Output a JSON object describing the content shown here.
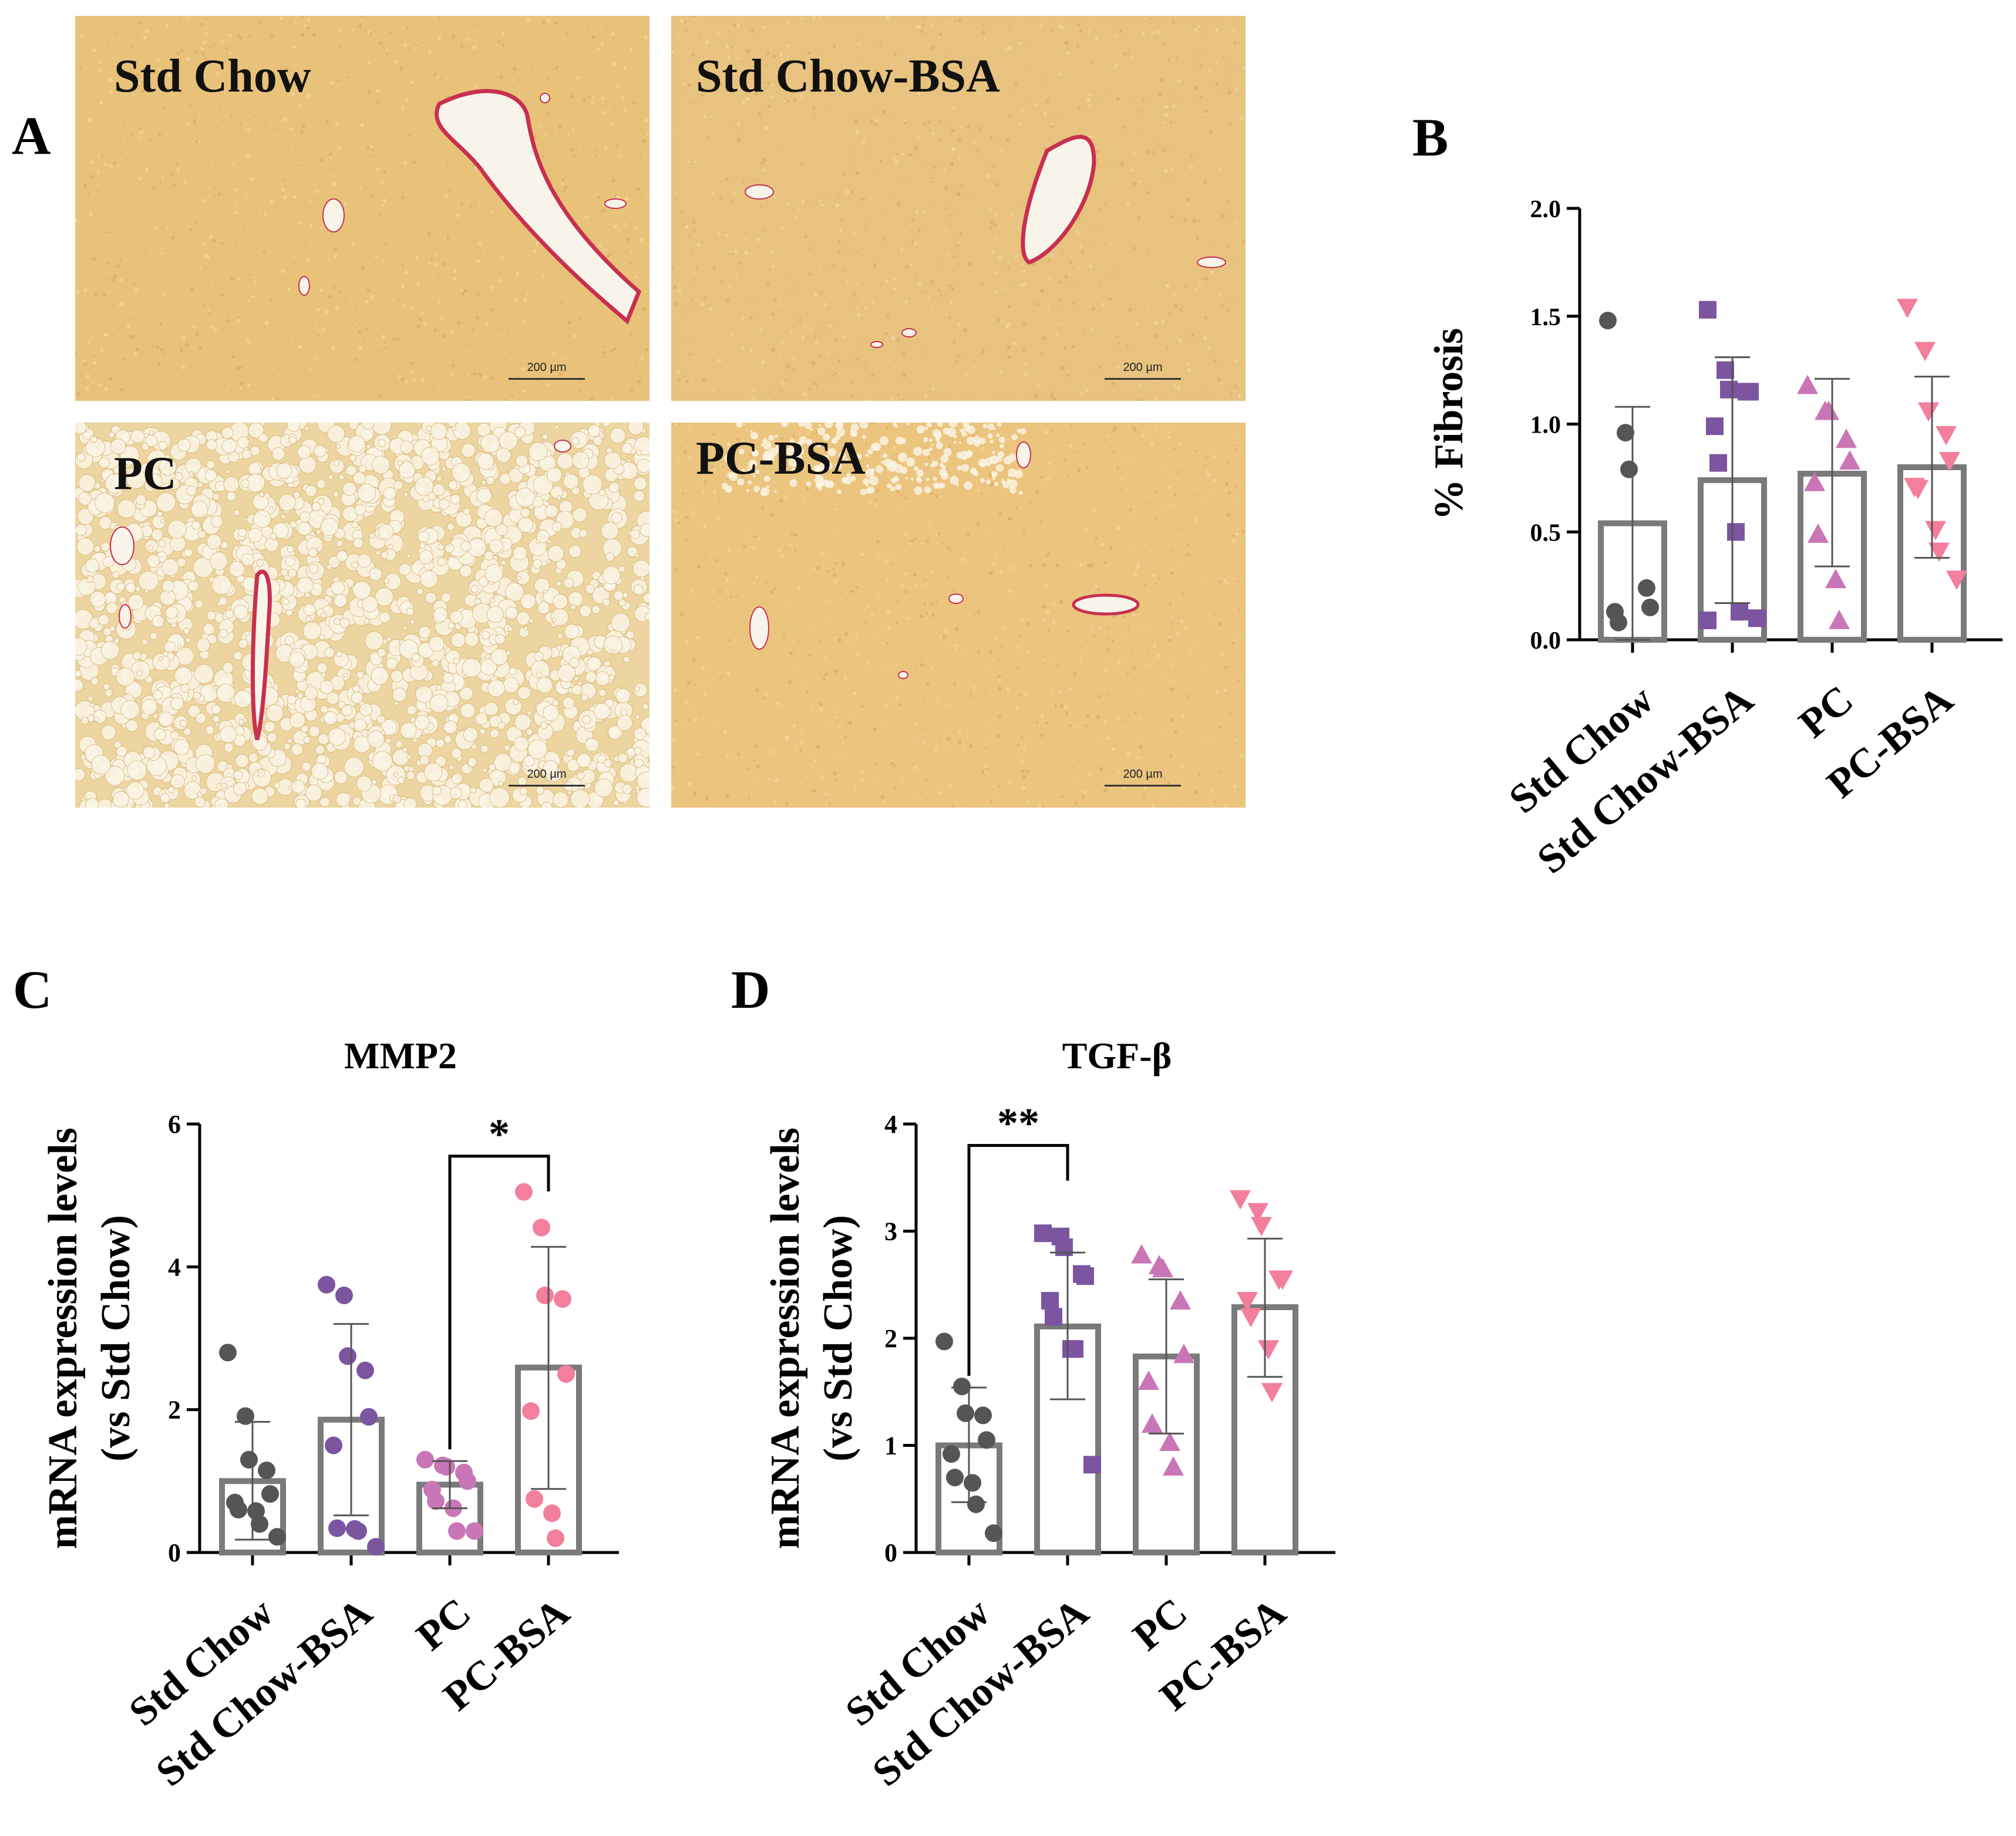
{
  "figure": {
    "panel_letters": {
      "a": "A",
      "b": "B",
      "c": "C",
      "d": "D"
    }
  },
  "micrographs": [
    {
      "label": "Std Chow",
      "scale": "200 µm",
      "tissue": "#e9c27a",
      "vessel_color": "#c7304f"
    },
    {
      "label": "Std Chow-BSA",
      "scale": "200 µm",
      "tissue": "#e8c37f",
      "vessel_color": "#c7304f"
    },
    {
      "label": "PC",
      "scale": "200 µm",
      "tissue": "#ecd5a0",
      "vessel_color": "#c7304f"
    },
    {
      "label": "PC-BSA",
      "scale": "200 µm",
      "tissue": "#ebc47e",
      "vessel_color": "#c7304f"
    }
  ],
  "colors": {
    "std_chow": "#555555",
    "std_chow_bsa": "#7b55a0",
    "pc": "#c976b6",
    "pc_bsa": "#f27f9b",
    "bar_outline": "#7a7a7a",
    "errorbar": "#555555"
  },
  "chart_data": [
    {
      "id": "B",
      "type": "bar",
      "title": "",
      "ylabel": "% Fibrosis",
      "xlabel": "",
      "categories": [
        "Std Chow",
        "Std Chow-BSA",
        "PC",
        "PC-BSA"
      ],
      "ylim": [
        0,
        2.0
      ],
      "yticks": [
        "0.0",
        "0.5",
        "1.0",
        "1.5",
        "2.0"
      ],
      "ytick_values": [
        0,
        0.5,
        1.0,
        1.5,
        2.0
      ],
      "means": [
        0.54,
        0.74,
        0.77,
        0.8
      ],
      "sd_upper": [
        1.08,
        1.31,
        1.21,
        1.22
      ],
      "sd_lower": [
        0.0,
        0.17,
        0.34,
        0.38
      ],
      "markers": [
        "circle",
        "square",
        "triangle-up",
        "triangle-down"
      ],
      "points": [
        [
          1.48,
          0.96,
          0.79,
          0.24,
          0.15,
          0.13,
          0.08
        ],
        [
          1.53,
          1.25,
          1.16,
          1.15,
          1.15,
          0.99,
          0.82,
          0.5,
          0.13,
          0.1,
          0.09
        ],
        [
          1.18,
          1.06,
          1.06,
          0.93,
          0.83,
          0.73,
          0.49,
          0.28,
          0.09
        ],
        [
          1.54,
          1.34,
          1.06,
          0.95,
          0.83,
          0.71,
          0.7,
          0.51,
          0.41,
          0.28
        ]
      ],
      "significance": []
    },
    {
      "id": "C",
      "type": "bar",
      "title": "MMP2",
      "ylabel": "mRNA expression levels",
      "ylabel2": "(vs Std Chow)",
      "xlabel": "",
      "categories": [
        "Std Chow",
        "Std Chow-BSA",
        "PC",
        "PC-BSA"
      ],
      "ylim": [
        0,
        6
      ],
      "yticks": [
        "0",
        "2",
        "4",
        "6"
      ],
      "ytick_values": [
        0,
        2,
        4,
        6
      ],
      "means": [
        1.0,
        1.86,
        0.95,
        2.59
      ],
      "sd_upper": [
        1.83,
        3.2,
        1.28,
        4.28
      ],
      "sd_lower": [
        0.18,
        0.52,
        0.62,
        0.89
      ],
      "markers": [
        "circle",
        "circle",
        "circle",
        "circle"
      ],
      "points": [
        [
          2.8,
          1.91,
          1.3,
          1.15,
          0.82,
          0.7,
          0.6,
          0.58,
          0.4,
          0.22
        ],
        [
          3.75,
          3.6,
          2.75,
          2.55,
          1.9,
          1.5,
          0.34,
          0.33,
          0.3,
          0.08
        ],
        [
          1.3,
          1.22,
          1.2,
          1.12,
          1.0,
          0.88,
          0.72,
          0.62,
          0.3,
          0.3
        ],
        [
          5.05,
          4.55,
          3.6,
          3.55,
          2.5,
          1.98,
          0.75,
          0.55,
          0.2
        ]
      ],
      "significance": [
        {
          "from": 2,
          "to": 3,
          "label": "*",
          "y": 5.55
        }
      ]
    },
    {
      "id": "D",
      "type": "bar",
      "title": "TGF-β",
      "ylabel": "mRNA expression levels",
      "ylabel2": "(vs Std Chow)",
      "xlabel": "",
      "categories": [
        "Std Chow",
        "Std Chow-BSA",
        "PC",
        "PC-BSA"
      ],
      "ylim": [
        0,
        4
      ],
      "yticks": [
        "0",
        "1",
        "2",
        "3",
        "4"
      ],
      "ytick_values": [
        0,
        1,
        2,
        3,
        4
      ],
      "means": [
        1.0,
        2.11,
        1.83,
        2.29
      ],
      "sd_upper": [
        1.54,
        2.8,
        2.55,
        2.93
      ],
      "sd_lower": [
        0.47,
        1.43,
        1.11,
        1.64
      ],
      "markers": [
        "circle",
        "square",
        "triangle-up",
        "triangle-down"
      ],
      "points": [
        [
          1.97,
          1.55,
          1.3,
          1.28,
          1.05,
          0.92,
          0.7,
          0.65,
          0.45,
          0.18
        ],
        [
          2.98,
          2.95,
          2.85,
          2.6,
          2.58,
          2.35,
          2.2,
          1.9,
          1.9,
          0.82
        ],
        [
          2.78,
          2.68,
          2.65,
          2.35,
          1.85,
          1.6,
          1.2,
          1.03,
          0.8
        ],
        [
          3.3,
          3.18,
          3.05,
          2.55,
          2.55,
          2.35,
          2.2,
          1.9,
          1.5
        ]
      ],
      "significance": [
        {
          "from": 0,
          "to": 1,
          "label": "**",
          "y": 3.8
        }
      ]
    }
  ]
}
